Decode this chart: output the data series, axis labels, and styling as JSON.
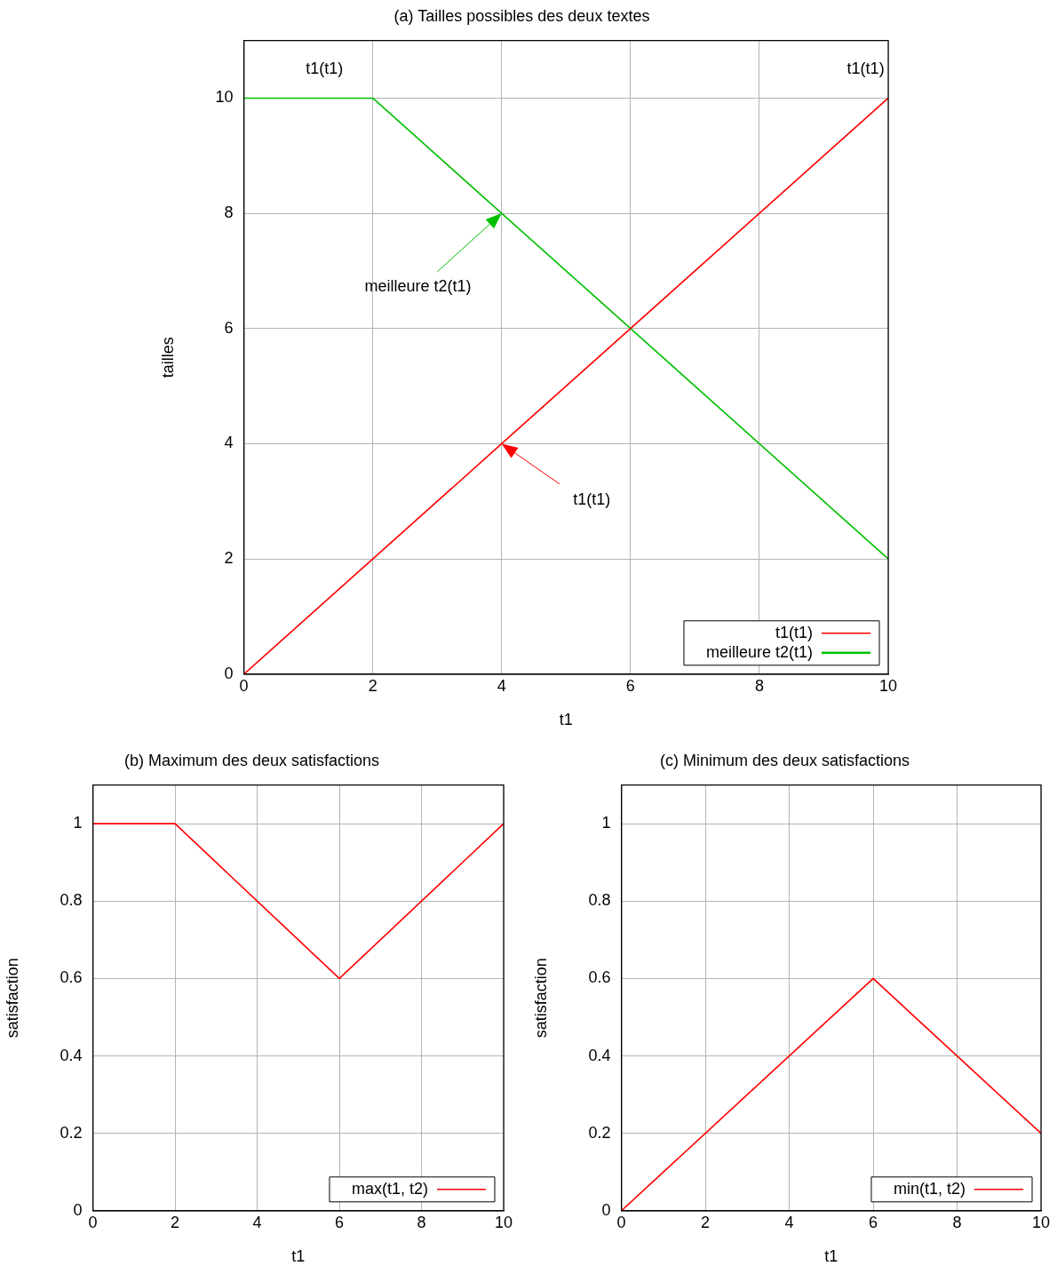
{
  "chart_data": [
    {
      "type": "line",
      "title": "(a) Tailles possibles des deux textes",
      "xlabel": "t1",
      "ylabel": "tailles",
      "xlim": [
        0,
        10
      ],
      "xticks": [
        0,
        2,
        4,
        6,
        8,
        10
      ],
      "ylim": [
        0,
        11
      ],
      "yticks": [
        0,
        2,
        4,
        6,
        8,
        10
      ],
      "grid": true,
      "legend": "bottom right",
      "series": [
        {
          "name": "t1(t1)",
          "color": "#ff0000",
          "x": [
            0,
            4,
            10
          ],
          "values": [
            0,
            4,
            10
          ]
        },
        {
          "name": "meilleure t2(t1)",
          "color": "#00c000",
          "x": [
            0,
            2,
            4,
            10
          ],
          "values": [
            10,
            10,
            8,
            2
          ]
        }
      ],
      "annotations": [
        "t1(t1)",
        "t1(t1)",
        "meilleure t2(t1)",
        "t1(t1)"
      ]
    },
    {
      "type": "line",
      "title": "(b) Maximum des deux satisfactions",
      "xlabel": "t1",
      "ylabel": "satisfaction",
      "xlim": [
        0,
        10
      ],
      "xticks": [
        0,
        2,
        4,
        6,
        8,
        10
      ],
      "ylim": [
        0,
        1.1
      ],
      "yticks": [
        0,
        0.2,
        0.4,
        0.6,
        0.8,
        1
      ],
      "grid": true,
      "legend": "bottom right",
      "series": [
        {
          "name": "max(t1, t2)",
          "color": "#ff0000",
          "x": [
            0,
            2,
            6,
            10
          ],
          "values": [
            1,
            1,
            0.6,
            1
          ]
        }
      ]
    },
    {
      "type": "line",
      "title": "(c) Minimum des deux satisfactions",
      "xlabel": "t1",
      "ylabel": "satisfaction",
      "xlim": [
        0,
        10
      ],
      "xticks": [
        0,
        2,
        4,
        6,
        8,
        10
      ],
      "ylim": [
        0,
        1.1
      ],
      "yticks": [
        0,
        0.2,
        0.4,
        0.6,
        0.8,
        1
      ],
      "grid": true,
      "legend": "bottom right",
      "series": [
        {
          "name": "min(t1, t2)",
          "color": "#ff0000",
          "x": [
            0,
            6,
            10
          ],
          "values": [
            0,
            0.6,
            0.2
          ]
        }
      ]
    }
  ]
}
